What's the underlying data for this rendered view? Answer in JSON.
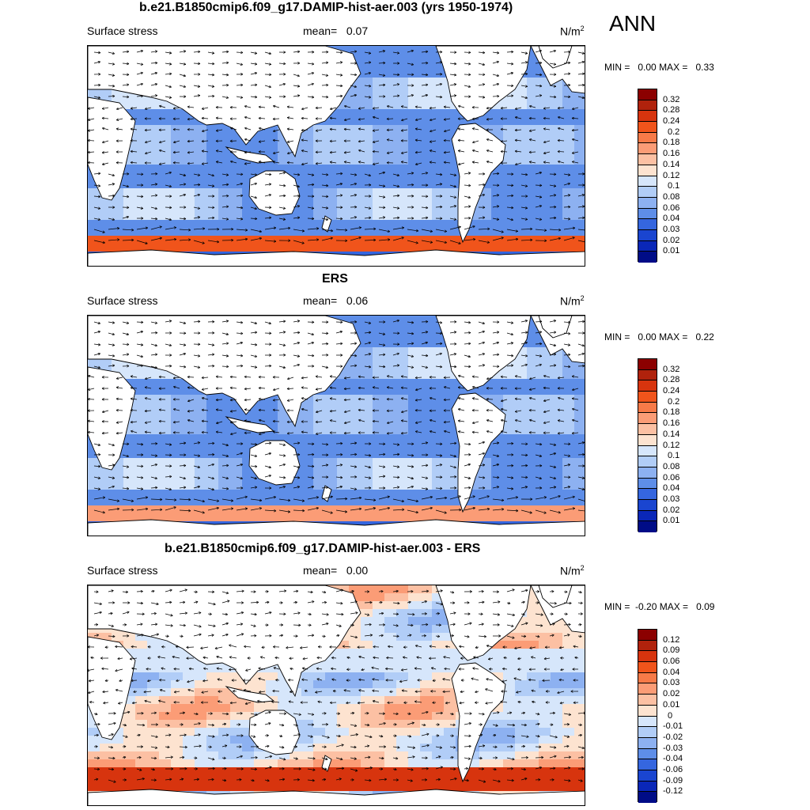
{
  "season": "ANN",
  "panels": [
    {
      "id": "model",
      "title": "b.e21.B1850cmip6.f09_g17.DAMIP-hist-aer.003 (yrs 1950-1974)",
      "variable": "Surface stress",
      "mean_label": "mean=",
      "mean_value": "0.07",
      "units": "N/m",
      "units_sup": "2",
      "min_label": "MIN =",
      "min_value": "0.00",
      "max_label": "MAX =",
      "max_value": "0.33",
      "colorbar_levels": [
        "0.32",
        "0.28",
        "0.24",
        "0.2",
        "0.18",
        "0.16",
        "0.14",
        "0.12",
        "0.1",
        "0.08",
        "0.06",
        "0.04",
        "0.03",
        "0.02",
        "0.01"
      ],
      "colorbar_colors": [
        "#8b0000",
        "#b0220c",
        "#d7340e",
        "#f0541b",
        "#f77a48",
        "#fb9c76",
        "#fcc0a3",
        "#fde3d0",
        "#d6e6fb",
        "#b1cdf7",
        "#8db1f1",
        "#5e8ee8",
        "#3566df",
        "#1a45d0",
        "#0a27b8",
        "#000c87"
      ],
      "field": "positive"
    },
    {
      "id": "obs",
      "title": "ERS",
      "variable": "Surface stress",
      "mean_label": "mean=",
      "mean_value": "0.06",
      "units": "N/m",
      "units_sup": "2",
      "min_label": "MIN =",
      "min_value": "0.00",
      "max_label": "MAX =",
      "max_value": "0.22",
      "colorbar_levels": [
        "0.32",
        "0.28",
        "0.24",
        "0.2",
        "0.18",
        "0.16",
        "0.14",
        "0.12",
        "0.1",
        "0.08",
        "0.06",
        "0.04",
        "0.03",
        "0.02",
        "0.01"
      ],
      "colorbar_colors": [
        "#8b0000",
        "#b0220c",
        "#d7340e",
        "#f0541b",
        "#f77a48",
        "#fb9c76",
        "#fcc0a3",
        "#fde3d0",
        "#d6e6fb",
        "#b1cdf7",
        "#8db1f1",
        "#5e8ee8",
        "#3566df",
        "#1a45d0",
        "#0a27b8",
        "#000c87"
      ],
      "field": "positive"
    },
    {
      "id": "diff",
      "title": "b.e21.B1850cmip6.f09_g17.DAMIP-hist-aer.003 - ERS",
      "variable": "Surface stress",
      "mean_label": "mean=",
      "mean_value": "0.00",
      "units": "N/m",
      "units_sup": "2",
      "min_label": "MIN =",
      "min_value": "-0.20",
      "max_label": "MAX =",
      "max_value": "0.09",
      "colorbar_levels": [
        "0.12",
        "0.09",
        "0.06",
        "0.04",
        "0.03",
        "0.02",
        "0.01",
        "0",
        "-0.01",
        "-0.02",
        "-0.03",
        "-0.04",
        "-0.06",
        "-0.09",
        "-0.12"
      ],
      "colorbar_colors": [
        "#8b0000",
        "#b0220c",
        "#d7340e",
        "#f0541b",
        "#f77a48",
        "#fb9c76",
        "#fcc0a3",
        "#fde3d0",
        "#d6e6fb",
        "#b1cdf7",
        "#8db1f1",
        "#5e8ee8",
        "#3566df",
        "#1a45d0",
        "#0a27b8",
        "#000c87"
      ],
      "field": "difference"
    }
  ]
}
